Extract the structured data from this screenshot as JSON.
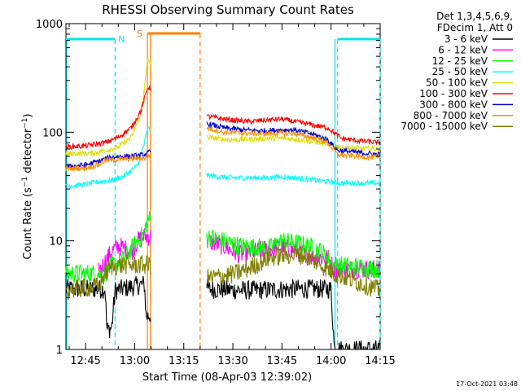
{
  "chart_data": {
    "type": "line",
    "title": "RHESSI Observing Summary Count Rates",
    "xlabel": "Start Time (08-Apr-03 12:39:02)",
    "ylabel": "Count Rate (s⁻¹ detector⁻¹)",
    "yscale": "log",
    "ylim": [
      1,
      1000
    ],
    "xlim_minutes": [
      0,
      96
    ],
    "x_ticks": [
      {
        "t": 6,
        "label": "12:45"
      },
      {
        "t": 21,
        "label": "13:00"
      },
      {
        "t": 36,
        "label": "13:15"
      },
      {
        "t": 51,
        "label": "13:30"
      },
      {
        "t": 66,
        "label": "13:45"
      },
      {
        "t": 81,
        "label": "14:00"
      },
      {
        "t": 96,
        "label": "14:15"
      }
    ],
    "y_ticks": [
      {
        "v": 1,
        "label": "1"
      },
      {
        "v": 10,
        "label": "10"
      },
      {
        "v": 100,
        "label": "100"
      },
      {
        "v": 1000,
        "label": "1000"
      }
    ],
    "legend_header": [
      "Det 1,3,4,5,6,9,",
      "FDecim 1, Att 0"
    ],
    "legend_position": "right",
    "annotations": {
      "night": {
        "label": "N",
        "color": "#00e5ee",
        "segments": [
          [
            0,
            15
          ],
          [
            83,
            96
          ]
        ],
        "dashes": [
          15,
          83,
          96
        ]
      },
      "saa": {
        "label": "S",
        "color": "#ff7f00",
        "segment": [
          25,
          41
        ],
        "lines": [
          24.9,
          25.8
        ],
        "dash": 41
      }
    },
    "gaps": [
      [
        26,
        43
      ]
    ],
    "series": [
      {
        "name": "3 - 6 keV",
        "color": "#000000",
        "points": [
          [
            0,
            3.6
          ],
          [
            10,
            3.6
          ],
          [
            12,
            3.6
          ],
          [
            12.5,
            1.5
          ],
          [
            14,
            1.6
          ],
          [
            15,
            3.5
          ],
          [
            24,
            4
          ],
          [
            24.5,
            2
          ],
          [
            43,
            3.6
          ],
          [
            55,
            3.5
          ],
          [
            70,
            3.6
          ],
          [
            81,
            3.6
          ],
          [
            82,
            1
          ],
          [
            96,
            1
          ]
        ]
      },
      {
        "name": "6 - 12 keV",
        "color": "#ff00ff",
        "points": [
          [
            10,
            5.2
          ],
          [
            14,
            8
          ],
          [
            16,
            9
          ],
          [
            20,
            8
          ],
          [
            22,
            10
          ],
          [
            24,
            11
          ],
          [
            25,
            11
          ],
          [
            43,
            10
          ],
          [
            48,
            9
          ],
          [
            53,
            7.5
          ],
          [
            58,
            8
          ],
          [
            62,
            8.5
          ],
          [
            67,
            8.8
          ],
          [
            70,
            8
          ],
          [
            76,
            7
          ],
          [
            80,
            7
          ],
          [
            82,
            5.5
          ],
          [
            96,
            5.5
          ]
        ]
      },
      {
        "name": "12 - 25 keV",
        "color": "#00ff00",
        "points": [
          [
            0,
            5
          ],
          [
            12,
            5
          ],
          [
            14,
            6
          ],
          [
            17,
            6.5
          ],
          [
            22,
            10
          ],
          [
            24,
            12
          ],
          [
            25,
            16
          ],
          [
            43,
            11
          ],
          [
            53,
            9
          ],
          [
            62,
            8.5
          ],
          [
            66,
            10
          ],
          [
            70,
            9.5
          ],
          [
            74,
            9
          ],
          [
            78,
            8
          ],
          [
            82,
            6
          ],
          [
            96,
            5.5
          ]
        ]
      },
      {
        "name": "25 - 50 keV",
        "color": "#00ffff",
        "points": [
          [
            0,
            32
          ],
          [
            6,
            33
          ],
          [
            10,
            35
          ],
          [
            14,
            36
          ],
          [
            18,
            40
          ],
          [
            22,
            50
          ],
          [
            24,
            80
          ],
          [
            25,
            110
          ],
          [
            43,
            40
          ],
          [
            50,
            38
          ],
          [
            57,
            38
          ],
          [
            62,
            38
          ],
          [
            66,
            39
          ],
          [
            70,
            38
          ],
          [
            80,
            35
          ],
          [
            84,
            34
          ],
          [
            96,
            34
          ]
        ]
      },
      {
        "name": "50 - 100 keV",
        "color": "#dddd00",
        "points": [
          [
            0,
            63
          ],
          [
            8,
            64
          ],
          [
            12,
            68
          ],
          [
            16,
            73
          ],
          [
            20,
            90
          ],
          [
            23,
            150
          ],
          [
            25,
            470
          ],
          [
            43,
            90
          ],
          [
            50,
            85
          ],
          [
            56,
            86
          ],
          [
            62,
            88
          ],
          [
            67,
            88
          ],
          [
            72,
            85
          ],
          [
            80,
            78
          ],
          [
            84,
            72
          ],
          [
            96,
            70
          ]
        ]
      },
      {
        "name": "100 - 300 keV",
        "color": "#ff0000",
        "points": [
          [
            0,
            73
          ],
          [
            6,
            75
          ],
          [
            12,
            80
          ],
          [
            16,
            90
          ],
          [
            20,
            110
          ],
          [
            23,
            160
          ],
          [
            25,
            260
          ],
          [
            43,
            140
          ],
          [
            50,
            130
          ],
          [
            56,
            125
          ],
          [
            62,
            130
          ],
          [
            66,
            132
          ],
          [
            70,
            125
          ],
          [
            80,
            110
          ],
          [
            84,
            88
          ],
          [
            90,
            83
          ],
          [
            96,
            80
          ]
        ]
      },
      {
        "name": "300 - 800 keV",
        "color": "#0000cc",
        "points": [
          [
            0,
            48
          ],
          [
            6,
            50
          ],
          [
            10,
            54
          ],
          [
            12,
            57
          ],
          [
            16,
            60
          ],
          [
            20,
            60
          ],
          [
            24,
            62
          ],
          [
            43,
            120
          ],
          [
            48,
            110
          ],
          [
            54,
            105
          ],
          [
            60,
            103
          ],
          [
            66,
            105
          ],
          [
            70,
            105
          ],
          [
            76,
            95
          ],
          [
            80,
            85
          ],
          [
            83,
            68
          ],
          [
            96,
            62
          ]
        ]
      },
      {
        "name": "800 - 7000 keV",
        "color": "#ff8c00",
        "points": [
          [
            0,
            46
          ],
          [
            6,
            47
          ],
          [
            10,
            50
          ],
          [
            12,
            55
          ],
          [
            16,
            56
          ],
          [
            20,
            57
          ],
          [
            24,
            58
          ],
          [
            43,
            110
          ],
          [
            48,
            100
          ],
          [
            54,
            98
          ],
          [
            60,
            97
          ],
          [
            66,
            98
          ],
          [
            70,
            97
          ],
          [
            76,
            88
          ],
          [
            80,
            80
          ],
          [
            83,
            62
          ],
          [
            96,
            58
          ]
        ]
      },
      {
        "name": "7000 - 15000 keV",
        "color": "#7f7f00",
        "points": [
          [
            0,
            3.5
          ],
          [
            10,
            3.8
          ],
          [
            12,
            5
          ],
          [
            14,
            5.8
          ],
          [
            18,
            6
          ],
          [
            22,
            6
          ],
          [
            25,
            6
          ],
          [
            43,
            4.5
          ],
          [
            52,
            5
          ],
          [
            58,
            6
          ],
          [
            62,
            7
          ],
          [
            66,
            7.3
          ],
          [
            70,
            7.5
          ],
          [
            74,
            7.2
          ],
          [
            78,
            6
          ],
          [
            82,
            5
          ],
          [
            96,
            3.5
          ]
        ]
      }
    ]
  },
  "footer": {
    "date": "17-Oct-2021 03:48"
  }
}
